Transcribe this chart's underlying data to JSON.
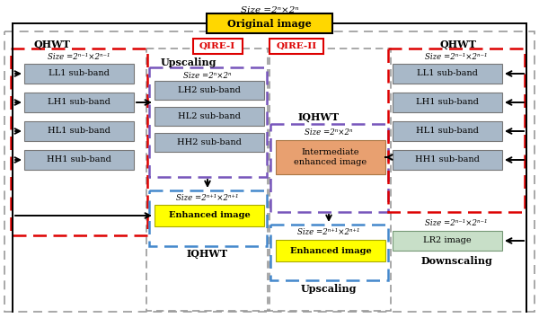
{
  "title_text": "Size =2ⁿ×2ⁿ",
  "original_image_label": "Original image",
  "original_image_color": "#FFD700",
  "subband_color": "#A8B8C8",
  "yellow_box_color": "#FFFF00",
  "orange_box_color": "#E8A070",
  "green_box_color": "#C8DFC8",
  "gray_dashed_color": "#888888",
  "red_dashed_color": "#DD0000",
  "blue_dashed_color": "#4488CC",
  "purple_dashed_color": "#7755BB",
  "left_qhwt_title": "QHWT",
  "left_size_label": "Size =2ⁿ⁻¹×2ⁿ⁻¹",
  "left_subbands": [
    "LL1 sub-band",
    "LH1 sub-band",
    "HL1 sub-band",
    "HH1 sub-band"
  ],
  "qire1_label": "QIRE-I",
  "upscaling_title": "Upscaling",
  "upscaling_size": "Size =2ⁿ×2ⁿ",
  "upscaling_subbands": [
    "LH2 sub-band",
    "HL2 sub-band",
    "HH2 sub-band"
  ],
  "iqhwt1_label": "IQHWT",
  "iqhwt1_size": "Size =2ⁿ⁺¹×2ⁿ⁺¹",
  "enhanced1_label": "Enhanced image",
  "qire2_label": "QIRE-II",
  "iqhwt2_title": "IQHWT",
  "iqhwt2_size": "Size =2ⁿ×2ⁿ",
  "intermediate_label": "Intermediate\nenhanced image",
  "upscaling2_label": "Upscaling",
  "enhanced2_size": "Size =2ⁿ⁺¹×2ⁿ⁺¹",
  "enhanced2_label": "Enhanced image",
  "right_qhwt_title": "QHWT",
  "right_size_label": "Size =2ⁿ⁻¹×2ⁿ⁻¹",
  "right_subbands": [
    "LL1 sub-band",
    "LH1 sub-band",
    "HL1 sub-band",
    "HH1 sub-band"
  ],
  "lr2_size": "Size =2ⁿ⁻¹×2ⁿ⁻¹",
  "lr2_label": "LR2 image",
  "downscaling_label": "Downscaling"
}
